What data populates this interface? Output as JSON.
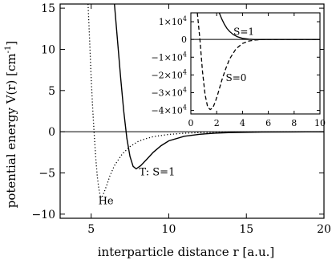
{
  "chart_data": [
    {
      "type": "line",
      "xlabel": "interparticle distance r [a.u.]",
      "ylabel": "potential energy V(r) [cm",
      "ylabel_exponent": "-1",
      "ylabel_close": "]",
      "xlim": [
        3,
        20
      ],
      "ylim": [
        -10.5,
        15.5
      ],
      "xticks": [
        5,
        10,
        15,
        20
      ],
      "xtick_labels": [
        "5",
        "10",
        "15",
        "20"
      ],
      "yticks": [
        -10,
        -5,
        0,
        5,
        10,
        15
      ],
      "ytick_labels": [
        "−10",
        "−5",
        "0",
        "5",
        "10",
        "15"
      ],
      "series": [
        {
          "name": "T: S=1",
          "style": "solid",
          "x": [
            6.5,
            6.7,
            6.9,
            7.1,
            7.3,
            7.5,
            7.7,
            7.9,
            8.2,
            8.6,
            9.0,
            9.5,
            10.0,
            11.0,
            12.0,
            13.0,
            14.0,
            16.0,
            18.0,
            20.0
          ],
          "y": [
            15.5,
            11.0,
            6.5,
            2.5,
            -0.8,
            -3.0,
            -4.2,
            -4.5,
            -4.1,
            -3.3,
            -2.5,
            -1.7,
            -1.1,
            -0.55,
            -0.3,
            -0.17,
            -0.1,
            -0.04,
            -0.02,
            -0.01
          ]
        },
        {
          "name": "He",
          "style": "dotted",
          "x": [
            4.8,
            4.9,
            5.0,
            5.1,
            5.2,
            5.3,
            5.4,
            5.5,
            5.6,
            5.7,
            5.8,
            6.0,
            6.2,
            6.5,
            7.0,
            7.5,
            8.0,
            8.5,
            9.0,
            10.0,
            11.0,
            12.0,
            14.0,
            16.0,
            18.0,
            20.0
          ],
          "y": [
            15.5,
            11.0,
            6.5,
            2.8,
            -0.5,
            -3.3,
            -5.5,
            -7.0,
            -7.9,
            -7.9,
            -7.5,
            -6.5,
            -5.4,
            -4.1,
            -2.7,
            -1.8,
            -1.2,
            -0.85,
            -0.6,
            -0.32,
            -0.18,
            -0.1,
            -0.04,
            -0.02,
            -0.01,
            -0.005
          ]
        }
      ],
      "annotations": [
        {
          "text": "T: S=1",
          "x": 9.25,
          "y": -5.3
        },
        {
          "text": "He",
          "x": 5.95,
          "y": -8.8
        }
      ]
    },
    {
      "type": "line",
      "inset": true,
      "xlim": [
        0,
        10
      ],
      "ylim": [
        -42000,
        15000
      ],
      "xticks": [
        0,
        2,
        4,
        6,
        8,
        10
      ],
      "xtick_labels": [
        "0",
        "2",
        "4",
        "6",
        "8",
        "10"
      ],
      "yticks": [
        10000,
        0,
        -10000,
        -20000,
        -30000,
        -40000
      ],
      "ytick_labels": [
        {
          "mantissa": "1×10",
          "exp": "4"
        },
        {
          "mantissa": "0",
          "exp": ""
        },
        {
          "mantissa": "−1×10",
          "exp": "4"
        },
        {
          "mantissa": "−2×10",
          "exp": "4"
        },
        {
          "mantissa": "−3×10",
          "exp": "4"
        },
        {
          "mantissa": "−4×10",
          "exp": "4"
        }
      ],
      "series": [
        {
          "name": "S=1",
          "style": "solid",
          "x": [
            2.2,
            2.4,
            2.6,
            2.8,
            3.0,
            3.3,
            3.6,
            4.0,
            4.5,
            5.0,
            5.5,
            6.0,
            7.0,
            8.0,
            10.0
          ],
          "y": [
            15000,
            11500,
            8500,
            6200,
            4500,
            2700,
            1500,
            600,
            150,
            -50,
            -80,
            -30,
            0,
            0,
            0
          ]
        },
        {
          "name": "S=0",
          "style": "dashed",
          "x": [
            0.5,
            0.7,
            0.9,
            1.1,
            1.3,
            1.5,
            1.7,
            1.9,
            2.1,
            2.4,
            2.7,
            3.0,
            3.5,
            4.0,
            4.5,
            5.0,
            5.5,
            6.0,
            7.0,
            8.0,
            10.0
          ],
          "y": [
            15000,
            0,
            -18000,
            -31000,
            -38000,
            -39500,
            -38500,
            -35000,
            -30500,
            -23000,
            -16500,
            -11000,
            -5200,
            -2300,
            -900,
            -300,
            -80,
            0,
            0,
            0,
            0
          ]
        }
      ],
      "annotations": [
        {
          "text": "S=1",
          "x": 3.3,
          "y": 2500
        },
        {
          "text": "S=0",
          "x": 2.7,
          "y": -23500
        }
      ]
    }
  ]
}
